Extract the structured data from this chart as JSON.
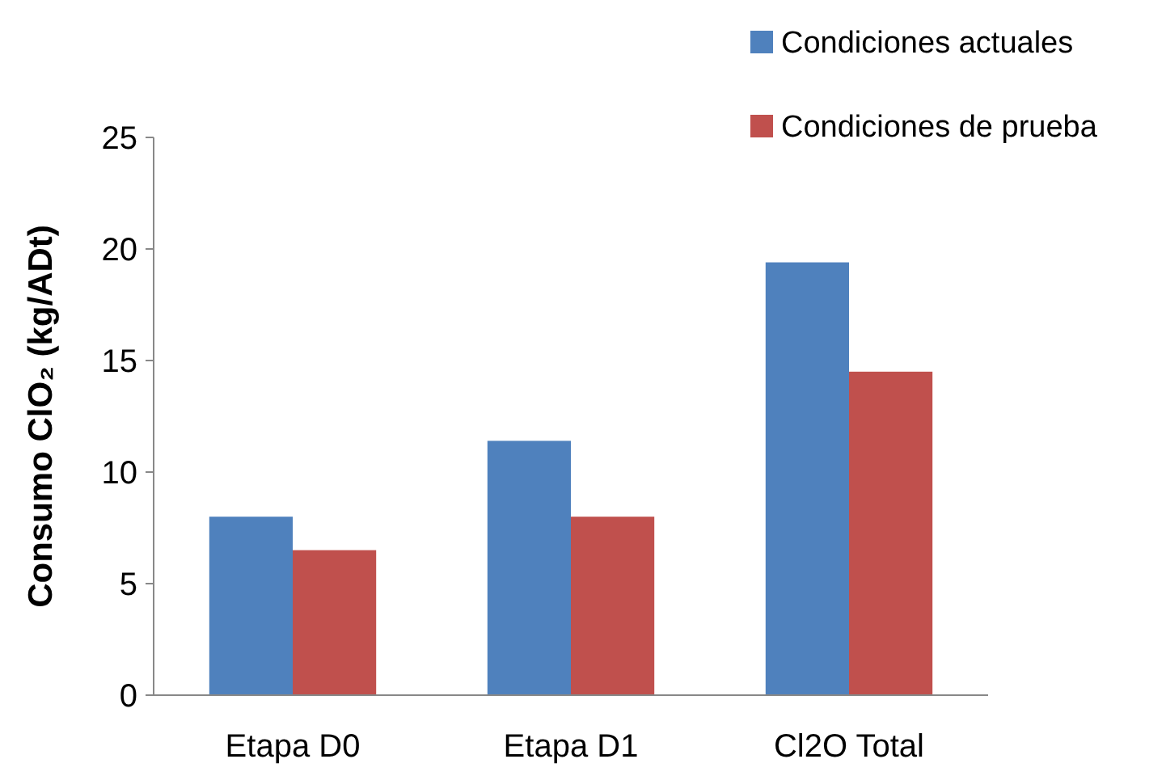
{
  "chart_data": {
    "type": "bar",
    "ylabel": "Consumo ClO₂ (kg/ADt)",
    "categories": [
      "Etapa D0",
      "Etapa D1",
      "Cl2O Total"
    ],
    "series": [
      {
        "name": "Condiciones actuales",
        "color": "#4f81bd",
        "values": [
          8,
          11.4,
          19.4
        ]
      },
      {
        "name": "Condiciones de prueba",
        "color": "#c0504d",
        "values": [
          6.5,
          8,
          14.5
        ]
      }
    ],
    "ylim": [
      0,
      25
    ],
    "yticks": [
      0,
      5,
      10,
      15,
      20,
      25
    ],
    "legend": "top right",
    "grid": false
  }
}
